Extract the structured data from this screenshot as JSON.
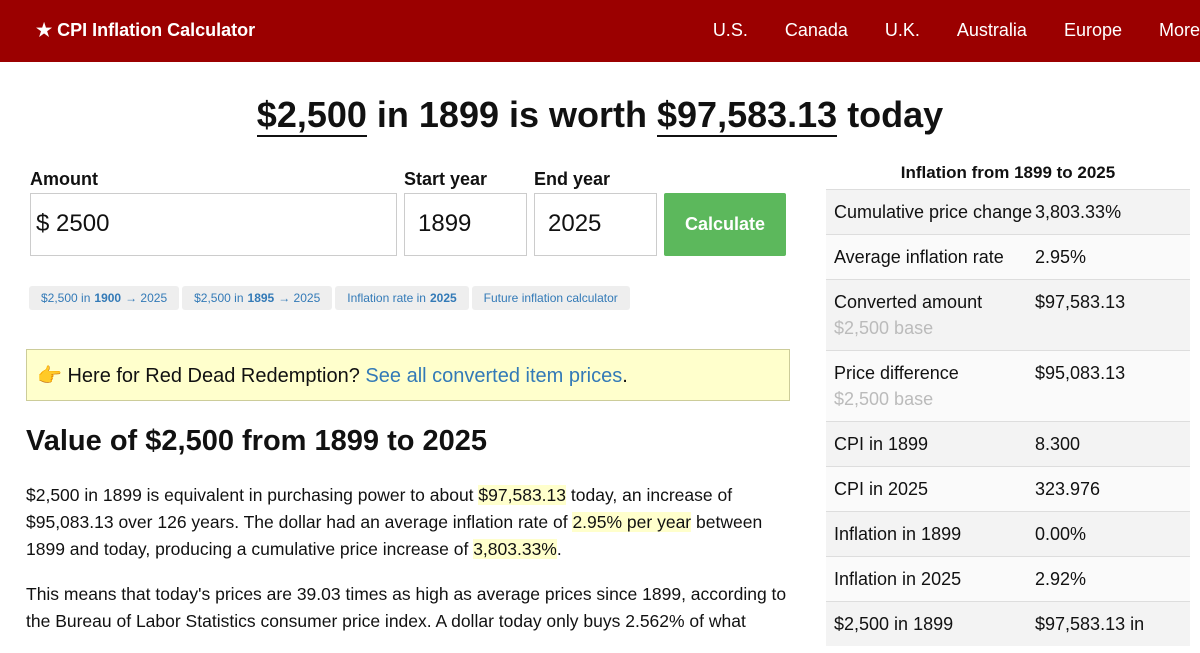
{
  "nav": {
    "brand": "★ CPI Inflation Calculator",
    "links": [
      "U.S.",
      "Canada",
      "U.K.",
      "Australia",
      "Europe",
      "More"
    ]
  },
  "headline": {
    "amount": "$2,500",
    "middle": "in 1899 is worth",
    "result": "$97,583.13",
    "suffix": "today"
  },
  "form": {
    "amount_label": "Amount",
    "currency": "$",
    "amount": "2500",
    "start_label": "Start year",
    "start": "1899",
    "end_label": "End year",
    "end": "2025",
    "button": "Calculate"
  },
  "chips": [
    {
      "pre": "$2,500 in",
      "bold": "1900",
      "post": "→ 2025"
    },
    {
      "pre": "$2,500 in",
      "bold": "1895",
      "post": "→ 2025"
    },
    {
      "pre": "Inflation rate in",
      "bold": "2025"
    },
    {
      "pre": "Future inflation calculator"
    }
  ],
  "notice": {
    "emoji": "👉",
    "text": "Here for Red Dead Redemption?",
    "link": "See all converted item prices",
    "end": "."
  },
  "section_title": "Value of $2,500 from 1899 to 2025",
  "paragraphs": [
    [
      {
        "text": "$2,500 in 1899 is equivalent in purchasing power to about"
      },
      {
        "text": "$97,583.13",
        "highlight": true
      },
      {
        "text": "today, an increase of $95,083.13 over 126 years. The dollar had an average inflation rate of"
      },
      {
        "text": "2.95% per year",
        "highlight": true
      },
      {
        "text": "between 1899 and today, producing a cumulative price increase of"
      },
      {
        "text": "3,803.33%",
        "highlight": true
      },
      {
        "text": "."
      }
    ],
    [
      {
        "text": "This means that today's prices are 39.03 times as high as average prices since 1899, according to the Bureau of Labor Statistics consumer price index. A dollar today only buys 2.562% of what"
      }
    ]
  ],
  "sidebar": {
    "title": "Inflation from 1899 to 2025",
    "rows": [
      {
        "label": "Cumulative price change",
        "value": "3,803.33%"
      },
      {
        "label": "Average inflation rate",
        "value": "2.95%"
      },
      {
        "label": "Converted amount",
        "note": "$2,500 base",
        "value": "$97,583.13"
      },
      {
        "label": "Price difference",
        "note": "$2,500 base",
        "value": "$95,083.13"
      },
      {
        "label": "CPI in 1899",
        "value": "8.300"
      },
      {
        "label": "CPI in 2025",
        "value": "323.976"
      },
      {
        "label": "Inflation in 1899",
        "value": "0.00%"
      },
      {
        "label": "Inflation in 2025",
        "value": "2.92%"
      },
      {
        "label": "$2,500 in 1899",
        "value": "$97,583.13 in"
      }
    ]
  }
}
